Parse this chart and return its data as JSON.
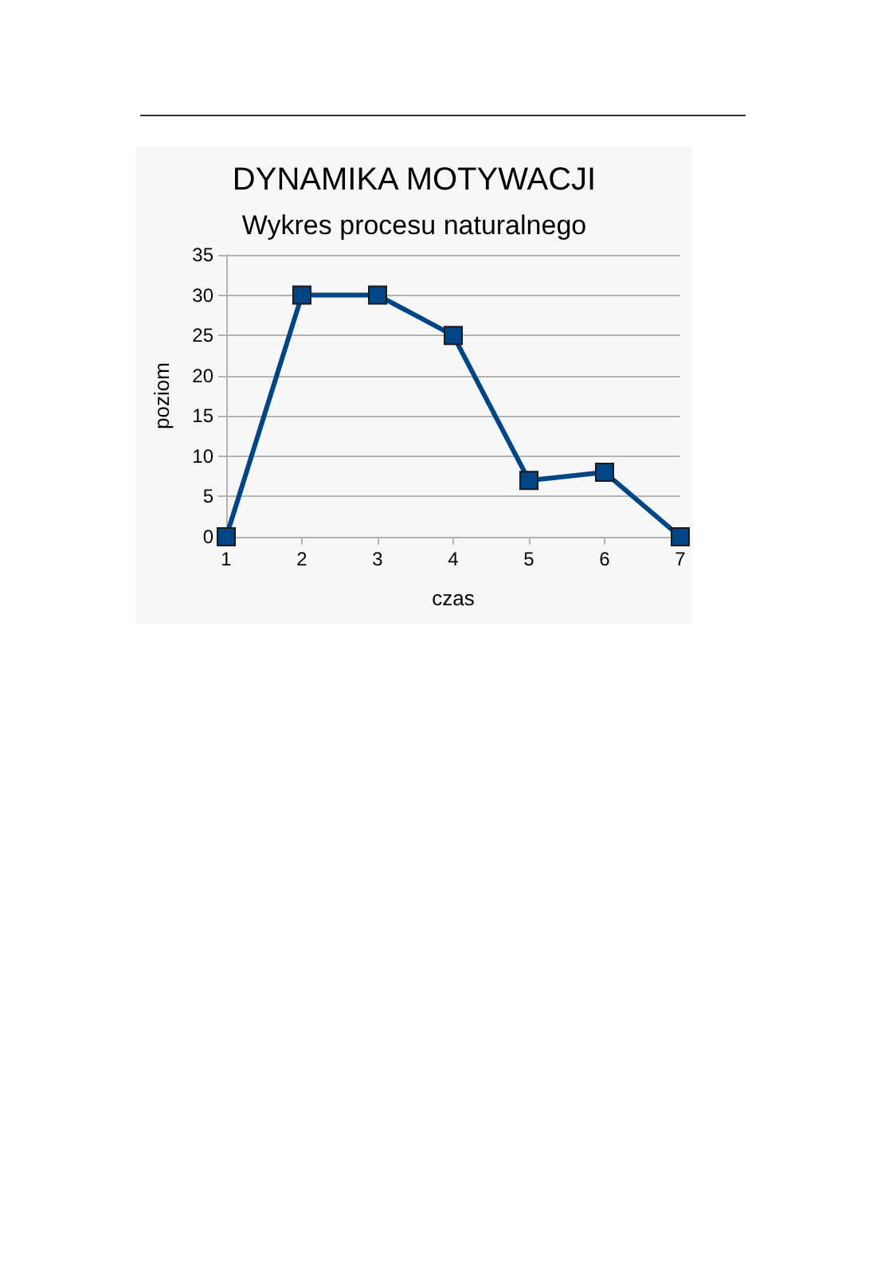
{
  "chart_data": {
    "type": "line",
    "title": "DYNAMIKA MOTYWACJI",
    "subtitle": "Wykres procesu naturalnego",
    "xlabel": "czas",
    "ylabel": "poziom",
    "categories": [
      "1",
      "2",
      "3",
      "4",
      "5",
      "6",
      "7"
    ],
    "series": [
      {
        "color": "#004586",
        "values": [
          0,
          30,
          30,
          25,
          7,
          8,
          0
        ]
      }
    ],
    "ylim": [
      0,
      35
    ],
    "yticks": [
      0,
      5,
      10,
      15,
      20,
      25,
      30,
      35
    ],
    "grid": "y",
    "marker": "square",
    "line_style": "solid"
  }
}
